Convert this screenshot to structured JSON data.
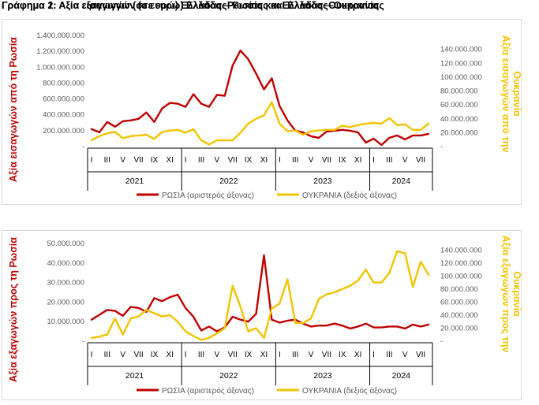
{
  "chart_data": [
    {
      "type": "line",
      "title": "Γράφημα 1: Αξία εισαγωγών (σε ευρώ) Ελλάδας–Ρωσίας και Ελλάδας–Ουκρανίας",
      "ylabel_left": "Αξία εισαγωγών από τη Ρωσία",
      "ylabel_right": "Αξία εισαγωγών από την Ουκρανία",
      "ylim_left": [
        0,
        1400000000
      ],
      "ylim_right": [
        0,
        160000000
      ],
      "yticks_left": [
        "-",
        "200.000.000",
        "400.000.000",
        "600.000.000",
        "800.000.000",
        "1.000.000.000",
        "1.200.000.000",
        "1.400.000.000"
      ],
      "yticks_right": [
        "-",
        "20.000.000",
        "40.000.000",
        "60.000.000",
        "80.000.000",
        "100.000.000",
        "120.000.000",
        "140.000.000"
      ],
      "month_labels": [
        "I",
        "III",
        "V",
        "VII",
        "IX",
        "XI",
        "I",
        "III",
        "V",
        "VII",
        "IX",
        "XI",
        "I",
        "III",
        "V",
        "VII",
        "IX",
        "XI",
        "I",
        "III",
        "V",
        "VII"
      ],
      "years": [
        "2021",
        "2022",
        "2023",
        "2024"
      ],
      "legend_position": "bottom",
      "series": [
        {
          "name": "ΡΩΣΙΑ (αριστερός άξονας)",
          "axis": "left",
          "color": "#c00000",
          "values": [
            220000000,
            180000000,
            310000000,
            250000000,
            320000000,
            330000000,
            350000000,
            430000000,
            310000000,
            480000000,
            550000000,
            540000000,
            500000000,
            660000000,
            540000000,
            500000000,
            650000000,
            640000000,
            1020000000,
            1210000000,
            1100000000,
            920000000,
            720000000,
            860000000,
            510000000,
            330000000,
            200000000,
            180000000,
            130000000,
            110000000,
            190000000,
            200000000,
            210000000,
            200000000,
            180000000,
            50000000,
            100000000,
            20000000,
            110000000,
            140000000,
            90000000,
            140000000,
            140000000,
            160000000
          ]
        },
        {
          "name": "ΟΥΚΡΑΝΙΑ (δεξιός άξονας)",
          "axis": "right",
          "color": "#f2c300",
          "values": [
            9000000,
            15000000,
            19000000,
            21000000,
            12000000,
            15000000,
            16000000,
            17000000,
            11000000,
            21000000,
            23000000,
            24000000,
            20000000,
            25000000,
            9000000,
            3000000,
            9000000,
            9000000,
            9000000,
            20000000,
            33000000,
            40000000,
            45000000,
            64000000,
            33000000,
            22000000,
            23000000,
            17000000,
            22000000,
            23000000,
            24000000,
            24000000,
            30000000,
            28000000,
            31000000,
            33000000,
            34000000,
            33000000,
            41000000,
            31000000,
            32000000,
            24000000,
            24000000,
            33000000
          ]
        }
      ]
    },
    {
      "type": "line",
      "title": "Γράφημα 2: Αξία εξαγωγών (σε ευρώ) Ελλάδας–Ρωσίας και Ελλάδας–Ουκρανίας",
      "ylabel_left": "Αξία εξαγωγών προς τη Ρωσία",
      "ylabel_right": "Αξία εξαγωγών προς την Ουκρανία",
      "ylim_left": [
        0,
        50000000
      ],
      "ylim_right": [
        0,
        150000000
      ],
      "yticks_left": [
        "-",
        "10.000.000",
        "20.000.000",
        "30.000.000",
        "40.000.000",
        "50.000.000"
      ],
      "yticks_right": [
        "-",
        "20.000.000",
        "40.000.000",
        "60.000.000",
        "80.000.000",
        "100.000.000",
        "120.000.000",
        "140.000.000"
      ],
      "month_labels": [
        "I",
        "III",
        "V",
        "VII",
        "IX",
        "XI",
        "I",
        "III",
        "V",
        "VII",
        "IX",
        "XI",
        "I",
        "III",
        "V",
        "VII",
        "IX",
        "XI",
        "I",
        "III",
        "V",
        "VII"
      ],
      "years": [
        "2021",
        "2022",
        "2023",
        "2024"
      ],
      "legend_position": "bottom",
      "series": [
        {
          "name": "ΡΩΣΙΑ (αριστερός άξονας)",
          "axis": "left",
          "color": "#c00000",
          "values": [
            11000000,
            13500000,
            16000000,
            15500000,
            13000000,
            17500000,
            17000000,
            15000000,
            22000000,
            20500000,
            22500000,
            23800000,
            17000000,
            12500000,
            5500000,
            7500000,
            5000000,
            7000000,
            12500000,
            11000000,
            10000000,
            14000000,
            44000000,
            11000000,
            9500000,
            10500000,
            11000000,
            9000000,
            7500000,
            8000000,
            8000000,
            9000000,
            8000000,
            6500000,
            7500000,
            9000000,
            7000000,
            7000000,
            7500000,
            7500000,
            6500000,
            8500000,
            7500000,
            8500000
          ]
        },
        {
          "name": "ΟΥΚΡΑΝΙΑ (δεξιός άξονας)",
          "axis": "right",
          "color": "#f2c300",
          "values": [
            5000000,
            7000000,
            10000000,
            35000000,
            10000000,
            35000000,
            38000000,
            48000000,
            43000000,
            38000000,
            40000000,
            30000000,
            15000000,
            8000000,
            2000000,
            5000000,
            12000000,
            20000000,
            85000000,
            53000000,
            15000000,
            20000000,
            5000000,
            50000000,
            58000000,
            95000000,
            28000000,
            28000000,
            35000000,
            65000000,
            72000000,
            75000000,
            80000000,
            85000000,
            93000000,
            110000000,
            90000000,
            90000000,
            105000000,
            138000000,
            135000000,
            83000000,
            122000000,
            102000000
          ]
        }
      ]
    }
  ]
}
